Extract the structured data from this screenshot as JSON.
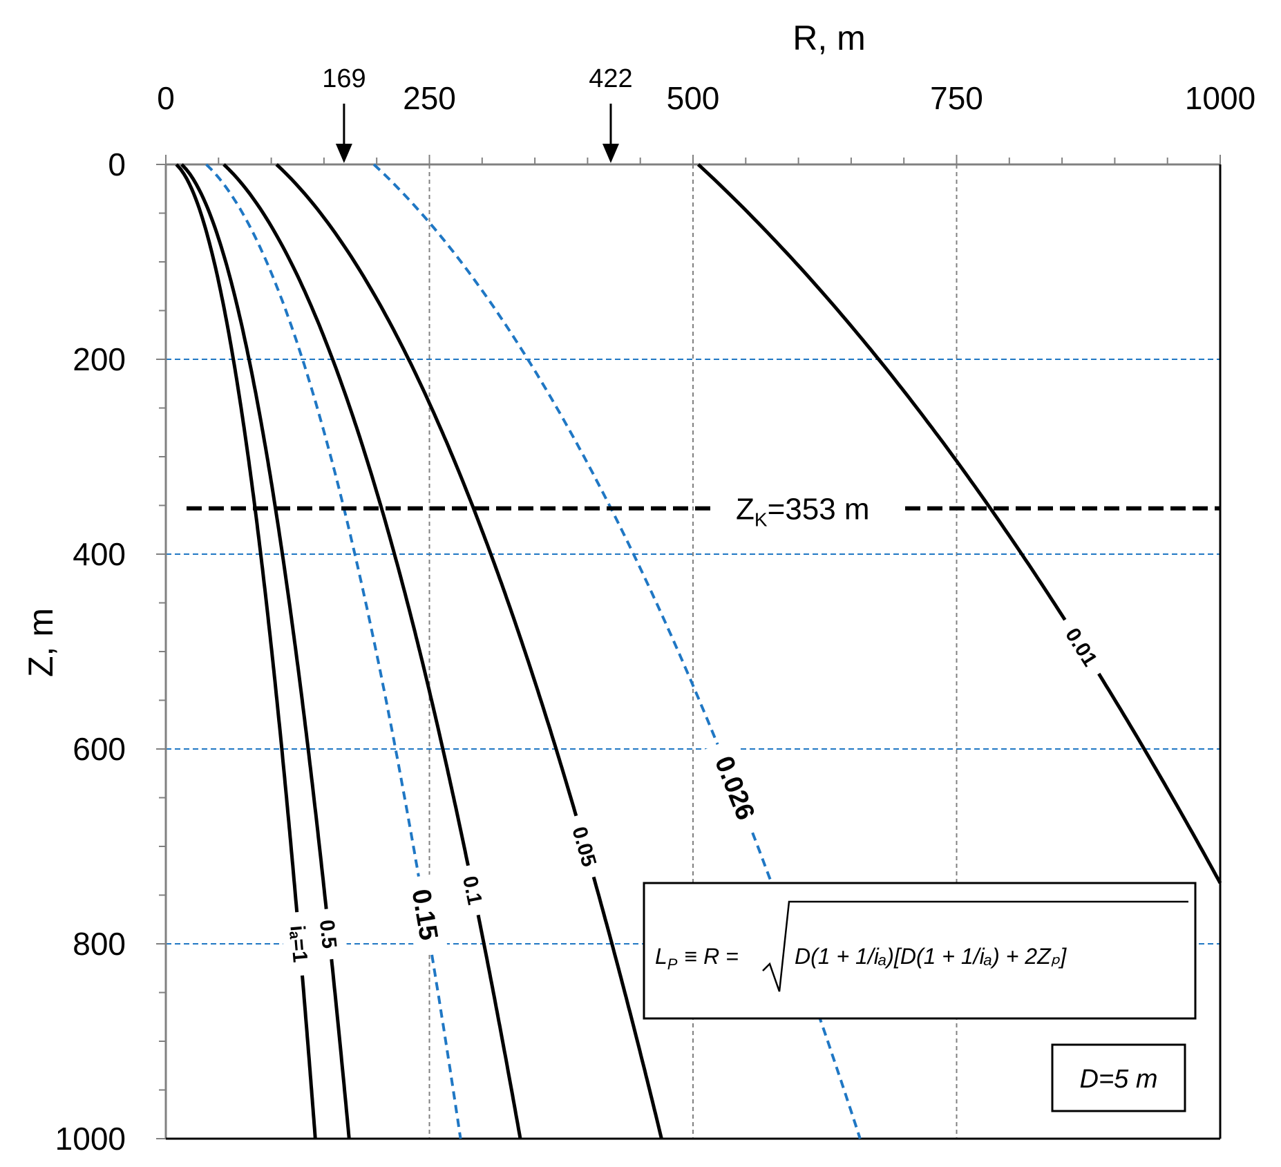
{
  "chart_data": {
    "type": "line",
    "title": "",
    "xlabel": "R,  m",
    "ylabel": "Z, m",
    "xlim": [
      0,
      1000
    ],
    "ylim": [
      1000,
      0
    ],
    "x_axis_position": "top",
    "y_axis_inverted": true,
    "x_ticks": [
      "0",
      "250",
      "500",
      "750",
      "1000"
    ],
    "y_ticks": [
      "0",
      "200",
      "400",
      "600",
      "800",
      "1000"
    ],
    "x_tick_values": [
      0,
      250,
      500,
      750,
      1000
    ],
    "y_tick_values": [
      0,
      200,
      400,
      600,
      800,
      1000
    ],
    "grid": {
      "vertical": [
        250,
        500,
        750
      ],
      "vertical_color": "#808080",
      "horizontal": [
        200,
        400,
        600,
        800
      ],
      "horizontal_color": "#1f77c4"
    },
    "D": 5,
    "series": [
      {
        "name": "iₐ=1",
        "ia": 1,
        "color": "#000000",
        "style": "solid",
        "label": "iₐ=1",
        "label_at": 800
      },
      {
        "name": "0.5",
        "ia": 0.5,
        "color": "#000000",
        "style": "solid",
        "label": "0.5",
        "label_at": 790
      },
      {
        "name": "0.15",
        "ia": 0.15,
        "color": "#1f77c4",
        "style": "dashed",
        "label": "0.15",
        "label_at": 770
      },
      {
        "name": "0.1",
        "ia": 0.1,
        "color": "#000000",
        "style": "solid",
        "label": "0.1",
        "label_at": 745
      },
      {
        "name": "0.05",
        "ia": 0.05,
        "color": "#000000",
        "style": "solid",
        "label": "0.05",
        "label_at": 700
      },
      {
        "name": "0.026",
        "ia": 0.026,
        "color": "#1f77c4",
        "style": "dashed",
        "label": "0.026",
        "label_at": 640
      },
      {
        "name": "0.01",
        "ia": 0.01,
        "color": "#000000",
        "style": "solid",
        "label": "0.01",
        "label_at": 495
      }
    ],
    "markers": [
      {
        "label": "169",
        "x": 169
      },
      {
        "label": "422",
        "x": 422
      }
    ],
    "zk_line": {
      "z": 353,
      "label_main": "Z",
      "label_sub": "K",
      "label_rest": "=353 m"
    },
    "formula_box": {
      "lhs": "L",
      "lhs_sub": "P",
      "equiv": "≡ R =",
      "text": "D(1 + 1/iₐ)[D(1 + 1/iₐ) + 2Zₚ]"
    },
    "d_box": "D=5 m"
  }
}
